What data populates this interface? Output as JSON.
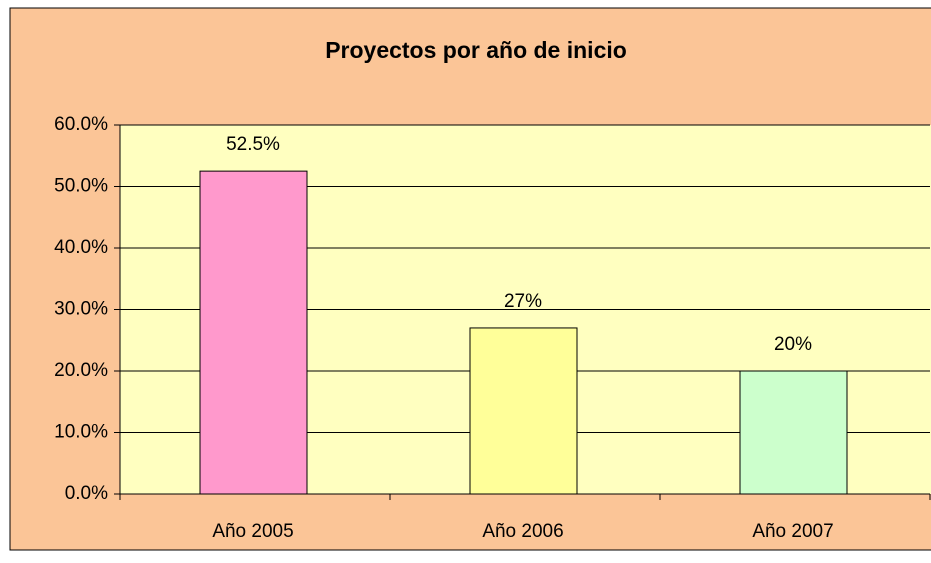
{
  "chart_data": {
    "type": "bar",
    "title": "Proyectos por año de inicio",
    "categories": [
      "Año 2005",
      "Año 2006",
      "Año 2007"
    ],
    "values": [
      52.5,
      27,
      20
    ],
    "value_labels": [
      "52.5%",
      "27%",
      "20%"
    ],
    "colors": [
      "#ff99cc",
      "#ffff99",
      "#ccffcc"
    ],
    "ylim": [
      0,
      60
    ],
    "yticks": [
      {
        "value": 0,
        "label": "0.0%"
      },
      {
        "value": 10,
        "label": "10.0%"
      },
      {
        "value": 20,
        "label": "20.0%"
      },
      {
        "value": 30,
        "label": "30.0%"
      },
      {
        "value": 40,
        "label": "40.0%"
      },
      {
        "value": 50,
        "label": "50.0%"
      },
      {
        "value": 60,
        "label": "60.0%"
      }
    ],
    "grid": true
  }
}
